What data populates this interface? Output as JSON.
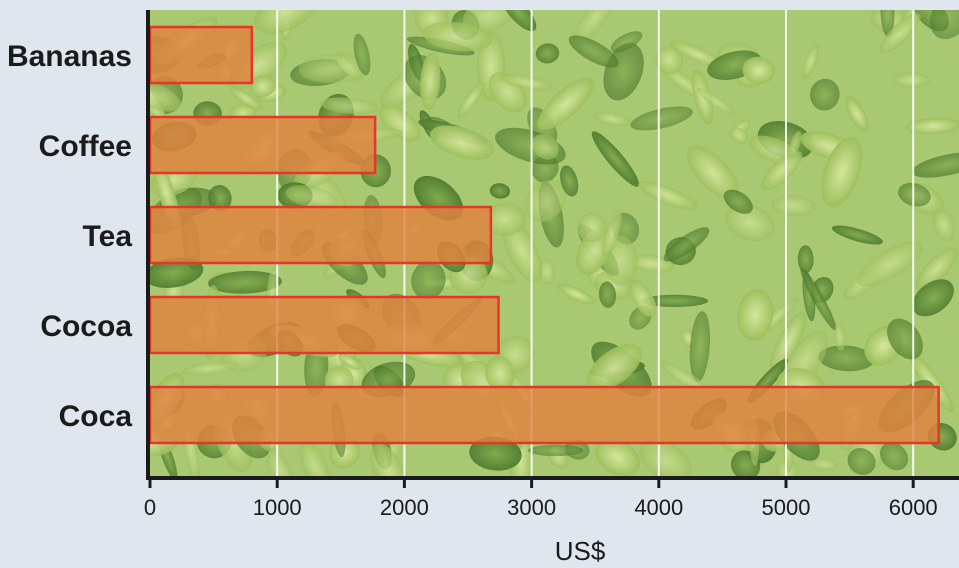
{
  "chart_data": {
    "type": "bar",
    "orientation": "horizontal",
    "categories": [
      "Bananas",
      "Coffee",
      "Tea",
      "Cocoa",
      "Coca"
    ],
    "values": [
      800,
      1770,
      2680,
      2740,
      6200
    ],
    "title": "",
    "xlabel": "US$",
    "ylabel": "",
    "xlim": [
      0,
      6300
    ],
    "xticks": [
      0,
      1000,
      2000,
      3000,
      4000,
      5000,
      6000
    ],
    "xtick_labels": [
      "0",
      "1000",
      "2000",
      "3000",
      "4000",
      "5000",
      "6000"
    ],
    "grid": true,
    "legend": "none",
    "background": "photo of green leafy plants"
  },
  "colors": {
    "page_background": "#dfe6ee",
    "bar_fill": "#e0823f",
    "bar_stroke": "#e8352a",
    "gridline": "#ffffff",
    "axis": "#1b1b1b",
    "foliage_dark": "#5e8a3a",
    "foliage_light": "#c9dc8e"
  }
}
